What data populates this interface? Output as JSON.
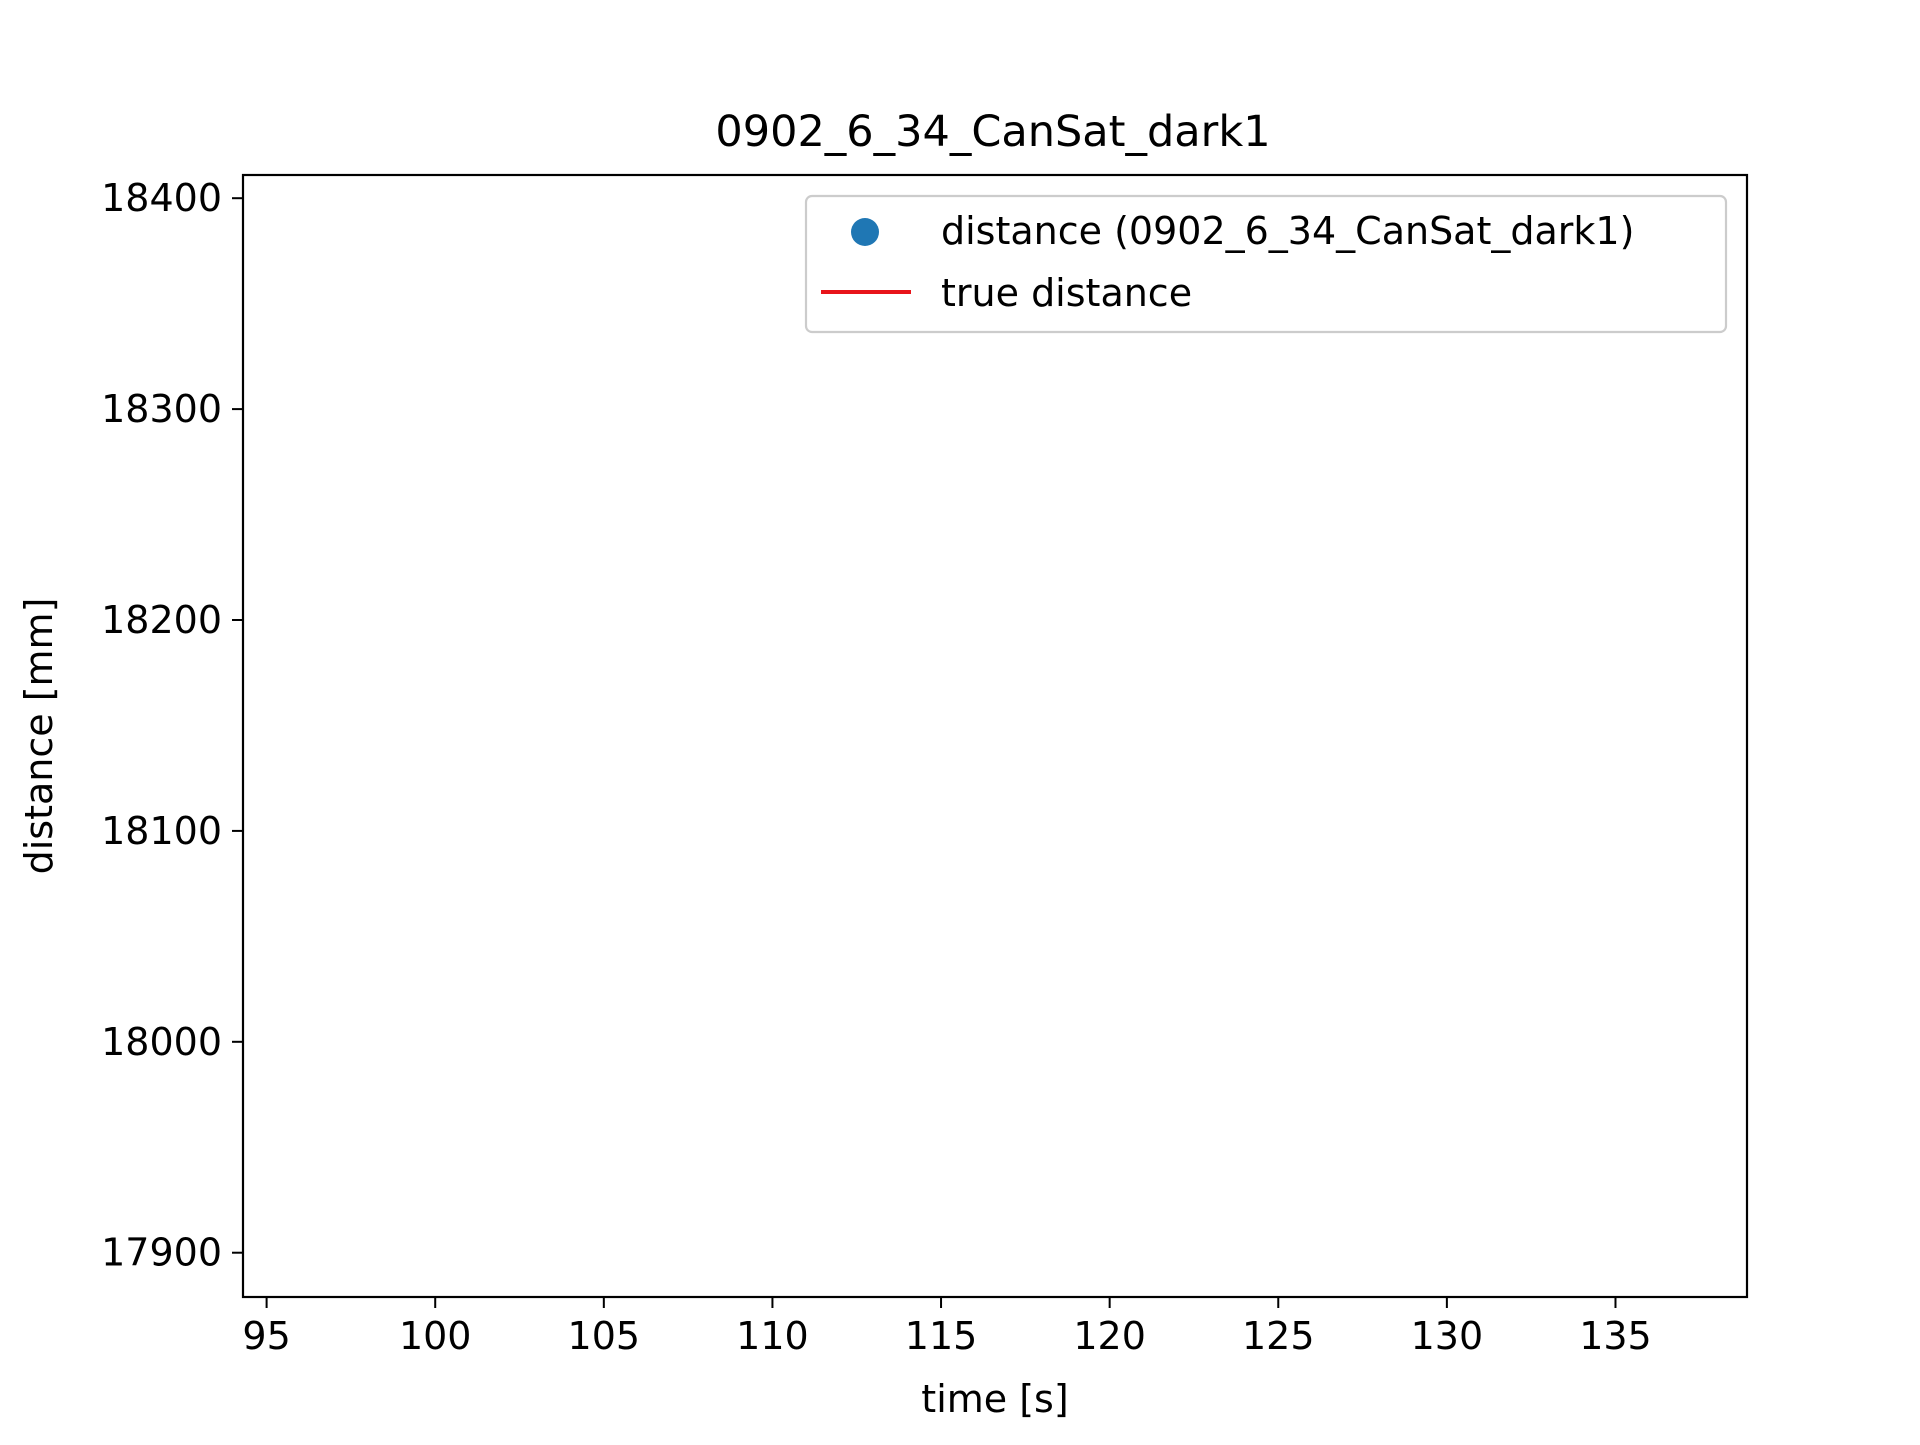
{
  "chart_data": {
    "type": "scatter",
    "title": "0902_6_34_CanSat_dark1",
    "xlabel": "time [s]",
    "ylabel": "distance [mm]",
    "xlim": [
      94.3,
      138.9
    ],
    "ylim": [
      17879,
      18411
    ],
    "xticks": [
      95,
      100,
      105,
      110,
      115,
      120,
      125,
      130,
      135
    ],
    "yticks": [
      17900,
      18000,
      18100,
      18200,
      18300,
      18400
    ],
    "grid": false,
    "legend_position": "upper right",
    "series": [
      {
        "name": "distance (0902_6_34_CanSat_dark1)",
        "kind": "scatter",
        "color": "#1f77b4",
        "points": []
      },
      {
        "name": "true distance",
        "kind": "line",
        "color": "#e8141a",
        "points": []
      }
    ]
  }
}
